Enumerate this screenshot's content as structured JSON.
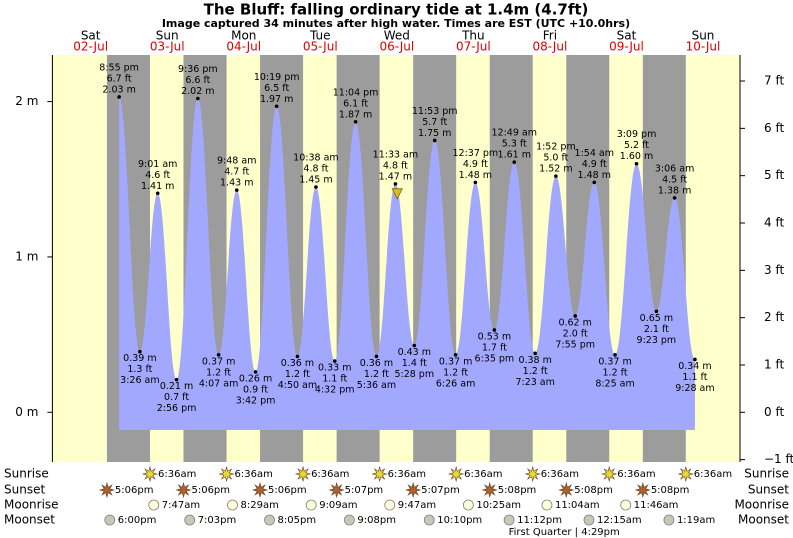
{
  "chart_data": {
    "type": "tide",
    "title": "The Bluff: falling  ordinary tide at 1.4m (4.7ft)",
    "subtitle": "Image captured 34 minutes after high water. Times are EST (UTC +10.0hrs)",
    "days": [
      {
        "name": "Sat",
        "date": "02-Jul"
      },
      {
        "name": "Sun",
        "date": "03-Jul"
      },
      {
        "name": "Mon",
        "date": "04-Jul"
      },
      {
        "name": "Tue",
        "date": "05-Jul"
      },
      {
        "name": "Wed",
        "date": "06-Jul"
      },
      {
        "name": "Thu",
        "date": "07-Jul"
      },
      {
        "name": "Fri",
        "date": "08-Jul"
      },
      {
        "name": "Sat",
        "date": "09-Jul"
      },
      {
        "name": "Sun",
        "date": "10-Jul"
      }
    ],
    "xlim": [
      0,
      215.6
    ],
    "ylim": [
      -0.32,
      2.3
    ],
    "yticks": [
      {
        "value": 0,
        "label": "0 m"
      },
      {
        "value": 1,
        "label": "1 m"
      },
      {
        "value": 2,
        "label": "2 m"
      }
    ],
    "y2lim": [
      -1.05,
      7.55
    ],
    "y2ticks": [
      {
        "value": -1,
        "label": "−1 ft"
      },
      {
        "value": 0,
        "label": "0 ft"
      },
      {
        "value": 1,
        "label": "1 ft"
      },
      {
        "value": 2,
        "label": "2 ft"
      },
      {
        "value": 3,
        "label": "3 ft"
      },
      {
        "value": 4,
        "label": "4 ft"
      },
      {
        "value": 5,
        "label": "5 ft"
      },
      {
        "value": 6,
        "label": "6 ft"
      },
      {
        "value": 7,
        "label": "7 ft"
      }
    ],
    "extremes": {
      "x": [
        20.92,
        27.43,
        33.02,
        38.93,
        45.6,
        52.12,
        57.8,
        63.7,
        70.32,
        76.83,
        82.63,
        88.53,
        95.07,
        101.6,
        107.55,
        113.47,
        119.88,
        126.43,
        132.62,
        138.58,
        144.82,
        151.38,
        157.87,
        163.92,
        169.9,
        176.42,
        183.15,
        189.38,
        195.1,
        201.47
      ],
      "values": [
        2.03,
        0.39,
        1.41,
        0.21,
        2.02,
        0.37,
        1.43,
        0.26,
        1.97,
        0.36,
        1.45,
        0.33,
        1.87,
        0.36,
        1.47,
        0.43,
        1.75,
        0.37,
        1.48,
        0.53,
        1.61,
        0.38,
        1.52,
        0.62,
        1.48,
        0.37,
        1.6,
        0.65,
        1.38,
        0.34
      ],
      "value_labels": [
        "2.03 m",
        "0.39 m",
        "1.41 m",
        "0.21 m",
        "2.02 m",
        "0.37 m",
        "1.43 m",
        "0.26 m",
        "1.97 m",
        "0.36 m",
        "1.45 m",
        "0.33 m",
        "1.87 m",
        "0.36 m",
        "1.47 m",
        "0.43 m",
        "1.75 m",
        "0.37 m",
        "1.48 m",
        "0.53 m",
        "1.61 m",
        "0.38 m",
        "1.52 m",
        "0.62 m",
        "1.48 m",
        "0.37 m",
        "1.60 m",
        "0.65 m",
        "1.38 m",
        "0.34 m"
      ],
      "ft_labels": [
        "6.7 ft",
        "1.3 ft",
        "4.6 ft",
        "0.7 ft",
        "6.6 ft",
        "1.2 ft",
        "4.7 ft",
        "0.9 ft",
        "6.5 ft",
        "1.2 ft",
        "4.8 ft",
        "1.1 ft",
        "6.1 ft",
        "1.2 ft",
        "4.8 ft",
        "1.4 ft",
        "5.7 ft",
        "1.2 ft",
        "4.9 ft",
        "1.7 ft",
        "5.3 ft",
        "1.2 ft",
        "5.0 ft",
        "2.0 ft",
        "4.9 ft",
        "1.2 ft",
        "5.2 ft",
        "2.1 ft",
        "4.5 ft",
        "1.1 ft"
      ],
      "time_labels": [
        "8:55 pm",
        "3:26 am",
        "9:01 am",
        "2:56 pm",
        "9:36 pm",
        "4:07 am",
        "9:48 am",
        "3:42 pm",
        "10:19 pm",
        "4:50 am",
        "10:38 am",
        "4:32 pm",
        "11:04 pm",
        "5:36 am",
        "11:33 am",
        "5:28 pm",
        "11:53 pm",
        "6:26 am",
        "12:37 pm",
        "6:35 pm",
        "12:49 am",
        "7:23 am",
        "1:52 pm",
        "7:55 pm",
        "1:54 am",
        "8:25 am",
        "3:09 pm",
        "9:23 pm",
        "3:06 am",
        "9:28 am"
      ]
    },
    "current": {
      "x": 108.12,
      "value": 1.4
    },
    "events": [
      {
        "label": "Sunrise",
        "icon": "sun",
        "x": [
          30.6,
          54.6,
          78.6,
          102.6,
          126.6,
          150.6,
          174.6,
          198.6
        ],
        "times": [
          "6:36am",
          "6:36am",
          "6:36am",
          "6:36am",
          "6:36am",
          "6:36am",
          "6:36am",
          "6:36am"
        ]
      },
      {
        "label": "Sunset",
        "icon": "sunset",
        "x": [
          17.1,
          41.1,
          65.1,
          89.12,
          113.12,
          137.13,
          161.13,
          185.13
        ],
        "times": [
          "5:06pm",
          "5:06pm",
          "5:06pm",
          "5:07pm",
          "5:07pm",
          "5:08pm",
          "5:08pm",
          "5:08pm"
        ]
      },
      {
        "label": "Moonrise",
        "icon": "moonrise",
        "x": [
          31.78,
          56.48,
          81.15,
          105.78,
          130.42,
          155.07,
          179.77
        ],
        "times": [
          "7:47am",
          "8:29am",
          "9:09am",
          "9:47am",
          "10:25am",
          "11:04am",
          "11:46am"
        ]
      },
      {
        "label": "Moonset",
        "icon": "moonset",
        "x": [
          18,
          43.05,
          68.08,
          93.13,
          118.17,
          143.2,
          168.25,
          193.32
        ],
        "times": [
          "6:00pm",
          "7:03pm",
          "8:05pm",
          "9:08pm",
          "10:10pm",
          "11:12pm",
          "12:15am",
          "1:19am"
        ]
      }
    ],
    "moon_phase": {
      "label": "First Quarter | 4:29pm",
      "x": 160.48
    },
    "colors": {
      "day": "#ffffcc",
      "night": "#9c9c9c",
      "tide": "#a3a8ff",
      "date": "#e00000"
    }
  }
}
